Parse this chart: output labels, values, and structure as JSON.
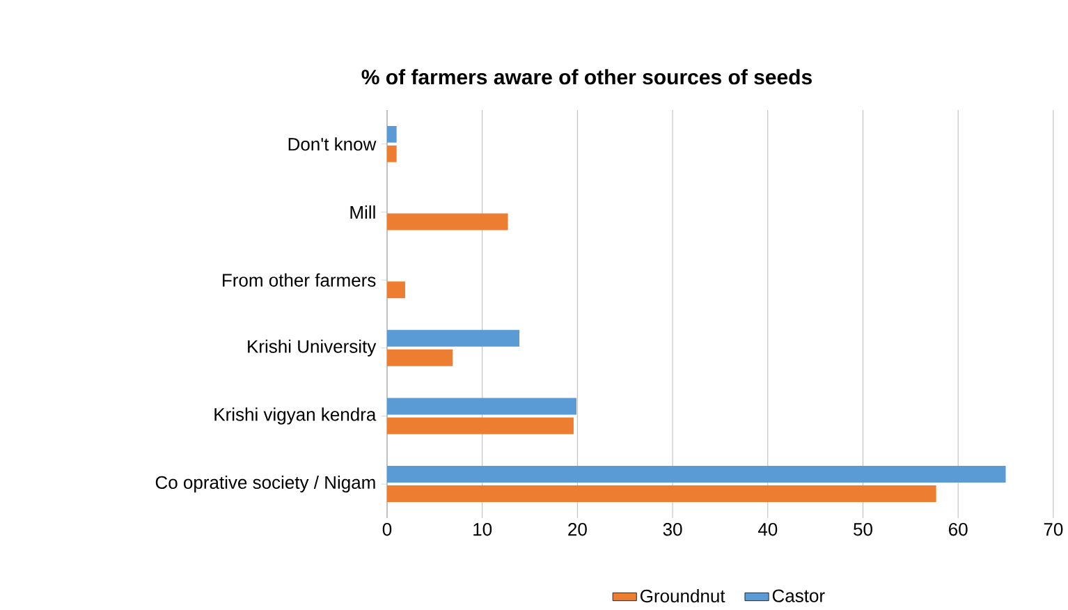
{
  "chart_data": {
    "type": "bar",
    "orientation": "horizontal",
    "title": "% of farmers aware of other sources of seeds",
    "categories": [
      "Don't know",
      "Mill",
      "From other farmers",
      "Krishi University",
      "Krishi vigyan kendra",
      "Co oprative society / Nigam"
    ],
    "series": [
      {
        "name": "Groundnut",
        "color": "#ed7d31",
        "values": [
          1,
          12.7,
          1.9,
          6.9,
          19.6,
          57.7
        ]
      },
      {
        "name": "Castor",
        "color": "#5b9bd5",
        "values": [
          1,
          null,
          null,
          13.9,
          19.9,
          65
        ]
      }
    ],
    "xlim": [
      0,
      70
    ],
    "xticks": [
      0,
      10,
      20,
      30,
      40,
      50,
      60,
      70
    ],
    "grid": "x",
    "legend": "bottom"
  }
}
